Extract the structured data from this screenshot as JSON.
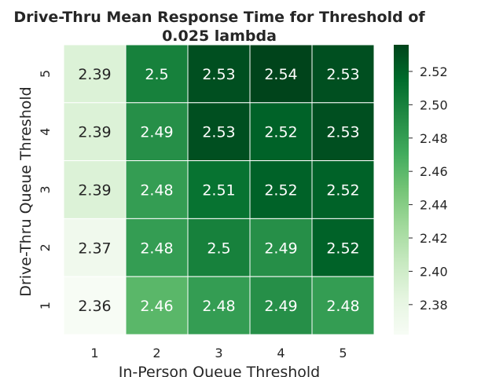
{
  "chart_data": {
    "type": "heatmap",
    "title_lines": [
      "Drive-Thru Mean Response Time for Threshold of",
      "0.025 lambda"
    ],
    "xlabel": "In-Person Queue Threshold",
    "ylabel": "Drive-Thru Queue Threshold",
    "x_categories": [
      "1",
      "2",
      "3",
      "4",
      "5"
    ],
    "y_categories": [
      "5",
      "4",
      "3",
      "2",
      "1"
    ],
    "values": [
      [
        2.39,
        2.5,
        2.53,
        2.54,
        2.53
      ],
      [
        2.39,
        2.49,
        2.53,
        2.52,
        2.53
      ],
      [
        2.39,
        2.48,
        2.51,
        2.52,
        2.52
      ],
      [
        2.37,
        2.48,
        2.5,
        2.49,
        2.52
      ],
      [
        2.36,
        2.46,
        2.48,
        2.49,
        2.48
      ]
    ],
    "colormap": "Greens",
    "vmin": 2.362,
    "vmax": 2.536,
    "colorbar_ticks": [
      2.38,
      2.4,
      2.42,
      2.44,
      2.46,
      2.48,
      2.5,
      2.52
    ]
  }
}
